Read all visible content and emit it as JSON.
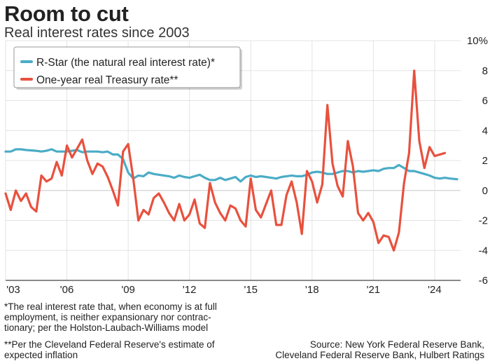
{
  "header": {
    "title": "Room to cut",
    "subtitle": "Real interest rates since 2003"
  },
  "notes": {
    "note1": "*The real interest rate that, when economy is at full employment, is neither expansionary nor contrac- tionary; per the Holston-Laubach-Williams model",
    "note2": "**Per the Cleveland Federal Reserve's estimate of expected inflation"
  },
  "source": {
    "line1": "Source: New York Federal Reserve Bank,",
    "line2": "Cleveland Federal Reserve Bank, Hulbert Ratings"
  },
  "chart_data": {
    "type": "line",
    "title": "Room to cut",
    "subtitle": "Real interest rates since 2003",
    "xlim": [
      2003,
      2025.25
    ],
    "ylim": [
      -6,
      10
    ],
    "x_ticks": [
      2003,
      2006,
      2009,
      2012,
      2015,
      2018,
      2021,
      2024
    ],
    "x_tick_labels": [
      "'03",
      "'06",
      "'09",
      "'12",
      "'15",
      "'18",
      "'21",
      "'24"
    ],
    "y_ticks": [
      -6,
      -4,
      -2,
      0,
      2,
      4,
      6,
      8,
      10
    ],
    "y_tick_labels": [
      "-6",
      "-4",
      "-2",
      "0",
      "2",
      "4",
      "6",
      "8",
      "10%"
    ],
    "legend_position": "top-left",
    "series": [
      {
        "name": "R-Star (the natural real interest rate)*",
        "color": "#4bacc6",
        "points": [
          [
            2003,
            2.6
          ],
          [
            2003.25,
            2.6
          ],
          [
            2003.5,
            2.75
          ],
          [
            2003.75,
            2.75
          ],
          [
            2004,
            2.7
          ],
          [
            2004.5,
            2.65
          ],
          [
            2004.75,
            2.6
          ],
          [
            2005,
            2.65
          ],
          [
            2005.25,
            2.75
          ],
          [
            2005.5,
            2.6
          ],
          [
            2006,
            2.6
          ],
          [
            2006.25,
            2.65
          ],
          [
            2006.5,
            2.7
          ],
          [
            2006.75,
            2.55
          ],
          [
            2007,
            2.6
          ],
          [
            2007.5,
            2.6
          ],
          [
            2007.75,
            2.55
          ],
          [
            2008,
            2.6
          ],
          [
            2008.25,
            2.4
          ],
          [
            2008.5,
            2.4
          ],
          [
            2008.75,
            2.1
          ],
          [
            2009,
            1.2
          ],
          [
            2009.25,
            0.8
          ],
          [
            2009.5,
            1.0
          ],
          [
            2009.75,
            0.95
          ],
          [
            2010,
            1.2
          ],
          [
            2010.25,
            1.1
          ],
          [
            2010.5,
            1.05
          ],
          [
            2010.75,
            1.0
          ],
          [
            2011,
            0.95
          ],
          [
            2011.25,
            0.85
          ],
          [
            2011.5,
            1.0
          ],
          [
            2011.75,
            0.9
          ],
          [
            2012,
            0.85
          ],
          [
            2012.25,
            0.95
          ],
          [
            2012.5,
            1.05
          ],
          [
            2012.75,
            0.85
          ],
          [
            2013,
            0.7
          ],
          [
            2013.25,
            0.7
          ],
          [
            2013.5,
            0.85
          ],
          [
            2013.75,
            0.7
          ],
          [
            2014,
            0.8
          ],
          [
            2014.25,
            0.9
          ],
          [
            2014.5,
            0.6
          ],
          [
            2014.75,
            0.9
          ],
          [
            2015,
            1.0
          ],
          [
            2015.25,
            0.9
          ],
          [
            2015.5,
            0.95
          ],
          [
            2015.75,
            0.9
          ],
          [
            2016,
            0.85
          ],
          [
            2016.25,
            0.8
          ],
          [
            2016.5,
            0.9
          ],
          [
            2016.75,
            0.95
          ],
          [
            2017,
            1.0
          ],
          [
            2017.25,
            0.95
          ],
          [
            2017.5,
            0.95
          ],
          [
            2017.75,
            1.05
          ],
          [
            2018,
            1.2
          ],
          [
            2018.25,
            1.25
          ],
          [
            2018.5,
            1.2
          ],
          [
            2018.75,
            1.1
          ],
          [
            2019,
            1.1
          ],
          [
            2019.25,
            1.2
          ],
          [
            2019.5,
            1.3
          ],
          [
            2019.75,
            1.3
          ],
          [
            2020,
            1.2
          ],
          [
            2020.25,
            1.3
          ],
          [
            2020.5,
            1.25
          ],
          [
            2020.75,
            1.3
          ],
          [
            2021,
            1.35
          ],
          [
            2021.25,
            1.3
          ],
          [
            2021.5,
            1.45
          ],
          [
            2021.75,
            1.5
          ],
          [
            2022,
            1.5
          ],
          [
            2022.25,
            1.7
          ],
          [
            2022.5,
            1.5
          ],
          [
            2022.75,
            1.3
          ],
          [
            2023,
            1.3
          ],
          [
            2023.25,
            1.2
          ],
          [
            2023.5,
            1.1
          ],
          [
            2023.75,
            1.0
          ],
          [
            2024,
            0.85
          ],
          [
            2024.25,
            0.8
          ],
          [
            2024.5,
            0.85
          ],
          [
            2024.75,
            0.8
          ],
          [
            2025.1,
            0.75
          ]
        ]
      },
      {
        "name": "One-year real Treasury rate**",
        "color": "#e8513e",
        "points": [
          [
            2003,
            -0.2
          ],
          [
            2003.25,
            -1.3
          ],
          [
            2003.5,
            0.0
          ],
          [
            2003.75,
            -0.7
          ],
          [
            2004,
            -0.2
          ],
          [
            2004.25,
            -1.1
          ],
          [
            2004.5,
            -1.4
          ],
          [
            2004.75,
            1.0
          ],
          [
            2005,
            0.6
          ],
          [
            2005.25,
            0.8
          ],
          [
            2005.5,
            1.9
          ],
          [
            2005.75,
            1.0
          ],
          [
            2006,
            3.0
          ],
          [
            2006.25,
            2.2
          ],
          [
            2006.5,
            2.8
          ],
          [
            2006.75,
            3.4
          ],
          [
            2007,
            2.0
          ],
          [
            2007.25,
            1.1
          ],
          [
            2007.5,
            1.8
          ],
          [
            2007.75,
            1.6
          ],
          [
            2008,
            0.9
          ],
          [
            2008.25,
            0.0
          ],
          [
            2008.5,
            -1.0
          ],
          [
            2008.75,
            2.6
          ],
          [
            2009,
            3.1
          ],
          [
            2009.25,
            0.8
          ],
          [
            2009.5,
            -2.0
          ],
          [
            2009.75,
            -1.3
          ],
          [
            2010,
            -1.6
          ],
          [
            2010.25,
            -0.5
          ],
          [
            2010.5,
            -0.2
          ],
          [
            2010.75,
            -0.8
          ],
          [
            2011,
            -1.5
          ],
          [
            2011.25,
            -2.0
          ],
          [
            2011.5,
            -0.9
          ],
          [
            2011.75,
            -2.0
          ],
          [
            2012,
            -1.6
          ],
          [
            2012.25,
            -0.6
          ],
          [
            2012.5,
            -2.2
          ],
          [
            2012.75,
            -2.5
          ],
          [
            2013,
            0.5
          ],
          [
            2013.25,
            -0.8
          ],
          [
            2013.5,
            -1.5
          ],
          [
            2013.75,
            -2.0
          ],
          [
            2014,
            -1.0
          ],
          [
            2014.25,
            -1.2
          ],
          [
            2014.5,
            -2.0
          ],
          [
            2014.75,
            -2.4
          ],
          [
            2015,
            0.8
          ],
          [
            2015.25,
            -1.3
          ],
          [
            2015.5,
            -1.8
          ],
          [
            2015.75,
            -0.9
          ],
          [
            2016,
            0.0
          ],
          [
            2016.25,
            -2.3
          ],
          [
            2016.5,
            -2.3
          ],
          [
            2016.75,
            -0.3
          ],
          [
            2017,
            0.6
          ],
          [
            2017.25,
            -0.8
          ],
          [
            2017.5,
            -2.9
          ],
          [
            2017.75,
            1.3
          ],
          [
            2018,
            0.6
          ],
          [
            2018.25,
            -0.8
          ],
          [
            2018.5,
            0.4
          ],
          [
            2018.75,
            5.7
          ],
          [
            2019,
            1.8
          ],
          [
            2019.25,
            0.3
          ],
          [
            2019.5,
            -0.4
          ],
          [
            2019.75,
            3.3
          ],
          [
            2020,
            1.6
          ],
          [
            2020.25,
            -1.5
          ],
          [
            2020.5,
            -2.0
          ],
          [
            2020.75,
            -1.5
          ],
          [
            2021,
            -2.1
          ],
          [
            2021.25,
            -3.5
          ],
          [
            2021.5,
            -3.0
          ],
          [
            2021.75,
            -3.1
          ],
          [
            2022,
            -4.0
          ],
          [
            2022.25,
            -2.8
          ],
          [
            2022.5,
            0.5
          ],
          [
            2022.75,
            2.5
          ],
          [
            2023,
            8.0
          ],
          [
            2023.25,
            3.3
          ],
          [
            2023.5,
            1.5
          ],
          [
            2023.75,
            2.9
          ],
          [
            2024,
            2.3
          ],
          [
            2024.5,
            2.5
          ]
        ]
      }
    ]
  }
}
